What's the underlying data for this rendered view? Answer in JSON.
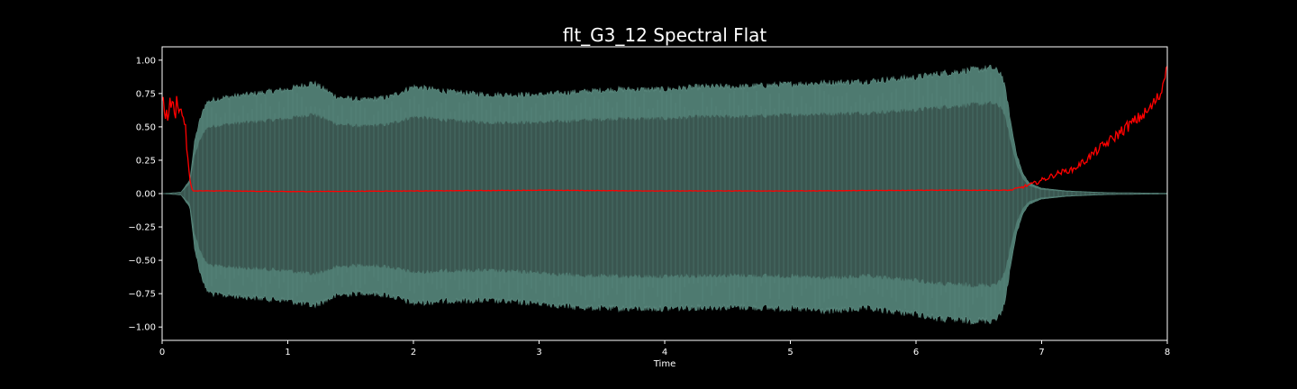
{
  "chart_data": {
    "type": "area",
    "title": "flt_G3_12 Spectral Flat",
    "xlabel": "Time",
    "ylabel": "",
    "xlim": [
      0,
      8.0
    ],
    "ylim": [
      -1.1,
      1.1
    ],
    "x_ticks": [
      0,
      1,
      2,
      3,
      4,
      5,
      6,
      7,
      8
    ],
    "x_tick_labels": [
      "0",
      "1",
      "2",
      "3",
      "4",
      "5",
      "6",
      "7",
      "8"
    ],
    "y_ticks": [
      1.0,
      0.75,
      0.5,
      0.25,
      0.0,
      -0.25,
      -0.5,
      -0.75,
      -1.0
    ],
    "y_tick_labels": [
      "1.00",
      "0.75",
      "0.50",
      "0.25",
      "0.00",
      "−0.25",
      "−0.50",
      "−0.75",
      "−1.00"
    ],
    "grid": false,
    "legend": "none",
    "colors": {
      "background": "#000000",
      "axes": "#ffffff",
      "waveform_body": "#3a5650",
      "waveform_envelope": "#4e7a70",
      "waveform_edge": "#5f8f84",
      "flatness_line": "#ff0000"
    },
    "series": [
      {
        "kind": "waveform_envelope",
        "x": [
          0,
          0.15,
          0.22,
          0.26,
          0.3,
          0.35,
          0.4,
          0.5,
          0.75,
          1.0,
          1.2,
          1.4,
          1.6,
          1.8,
          2.0,
          2.3,
          2.6,
          3.0,
          3.3,
          3.6,
          4.0,
          4.3,
          4.6,
          5.0,
          5.3,
          5.6,
          6.0,
          6.2,
          6.4,
          6.6,
          6.68,
          6.72,
          6.76,
          6.8,
          6.85,
          6.9,
          7.0,
          7.2,
          7.5,
          8.0
        ],
        "upper": [
          0.0,
          0.01,
          0.1,
          0.4,
          0.55,
          0.68,
          0.7,
          0.72,
          0.75,
          0.78,
          0.83,
          0.72,
          0.7,
          0.72,
          0.8,
          0.76,
          0.74,
          0.74,
          0.76,
          0.78,
          0.78,
          0.8,
          0.8,
          0.82,
          0.83,
          0.84,
          0.87,
          0.9,
          0.92,
          0.94,
          0.9,
          0.74,
          0.5,
          0.3,
          0.15,
          0.08,
          0.04,
          0.02,
          0.008,
          0.003
        ],
        "lower": [
          0.0,
          -0.01,
          -0.1,
          -0.42,
          -0.58,
          -0.72,
          -0.75,
          -0.76,
          -0.78,
          -0.8,
          -0.84,
          -0.76,
          -0.74,
          -0.76,
          -0.82,
          -0.8,
          -0.8,
          -0.82,
          -0.85,
          -0.86,
          -0.86,
          -0.85,
          -0.85,
          -0.86,
          -0.88,
          -0.86,
          -0.9,
          -0.94,
          -0.95,
          -0.95,
          -0.9,
          -0.74,
          -0.5,
          -0.3,
          -0.15,
          -0.08,
          -0.04,
          -0.02,
          -0.008,
          -0.003
        ],
        "body_fraction": 0.72,
        "periodic_fill": true
      },
      {
        "kind": "spectral_flatness",
        "color": "#ff0000",
        "x": [
          0,
          0.02,
          0.04,
          0.06,
          0.08,
          0.1,
          0.12,
          0.14,
          0.16,
          0.18,
          0.2,
          0.22,
          0.24,
          0.25,
          0.3,
          0.5,
          1.0,
          2.0,
          3.0,
          4.0,
          5.0,
          6.0,
          6.6,
          6.75,
          6.85,
          6.95,
          7.05,
          7.15,
          7.25,
          7.35,
          7.45,
          7.55,
          7.65,
          7.75,
          7.85,
          7.95,
          8.0
        ],
        "y": [
          0.7,
          0.62,
          0.58,
          0.66,
          0.7,
          0.56,
          0.73,
          0.62,
          0.6,
          0.55,
          0.3,
          0.1,
          0.03,
          0.02,
          0.02,
          0.02,
          0.015,
          0.02,
          0.025,
          0.02,
          0.02,
          0.025,
          0.025,
          0.025,
          0.05,
          0.08,
          0.12,
          0.16,
          0.18,
          0.25,
          0.33,
          0.4,
          0.48,
          0.55,
          0.62,
          0.75,
          1.0
        ],
        "noise": [
          0.06,
          0.06,
          0.06,
          0.06,
          0.06,
          0.06,
          0.06,
          0.06,
          0.06,
          0.06,
          0.03,
          0.01,
          0.002,
          0.002,
          0.002,
          0.002,
          0.002,
          0.002,
          0.002,
          0.002,
          0.002,
          0.002,
          0.002,
          0.004,
          0.01,
          0.015,
          0.02,
          0.02,
          0.02,
          0.03,
          0.035,
          0.04,
          0.045,
          0.045,
          0.05,
          0.05,
          0.05
        ]
      }
    ]
  }
}
